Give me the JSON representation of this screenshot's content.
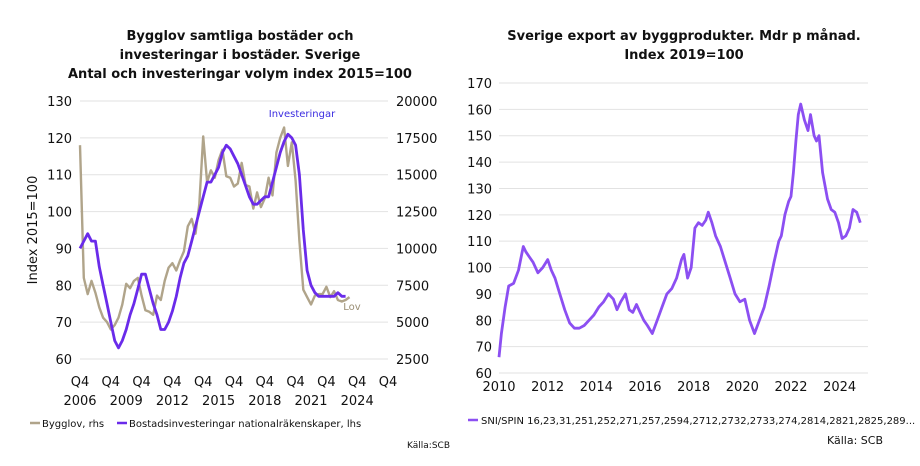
{
  "chart_data": [
    {
      "type": "line",
      "title_lines": [
        "Bygglov samtliga bostäder och",
        "investeringar i bostäder. Sverige",
        "Antal och investeringar volym index 2015=100"
      ],
      "ylabel": "Index 2015=100",
      "x_tick_quarters": [
        "Q4",
        "Q4",
        "Q4",
        "Q4",
        "Q4",
        "Q4",
        "Q4",
        "Q4",
        "Q4",
        "Q4",
        "Q4"
      ],
      "x_tick_years": [
        "2006",
        "2009",
        "2012",
        "2015",
        "2018",
        "2021",
        "2024"
      ],
      "y_left_ticks": [
        "60",
        "70",
        "80",
        "90",
        "100",
        "110",
        "120",
        "130"
      ],
      "y_right_ticks": [
        "2500",
        "5000",
        "7500",
        "10000",
        "12500",
        "15000",
        "17500",
        "20000"
      ],
      "ylim_left": [
        60,
        130
      ],
      "ylim_right": [
        2500,
        20000
      ],
      "xlim": [
        2006.75,
        2026.75
      ],
      "annotations": {
        "investeringar": "Investeringar",
        "lov": "Lov"
      },
      "series": [
        {
          "name": "Bygglov, rhs",
          "axis": "right",
          "color": "#b0a48a",
          "x": [
            2006.75,
            2007.0,
            2007.25,
            2007.5,
            2007.75,
            2008.0,
            2008.25,
            2008.5,
            2008.75,
            2009.0,
            2009.25,
            2009.5,
            2009.75,
            2010.0,
            2010.25,
            2010.5,
            2010.75,
            2011.0,
            2011.25,
            2011.5,
            2011.75,
            2012.0,
            2012.25,
            2012.5,
            2012.75,
            2013.0,
            2013.25,
            2013.5,
            2013.75,
            2014.0,
            2014.25,
            2014.5,
            2014.75,
            2015.0,
            2015.25,
            2015.5,
            2015.75,
            2016.0,
            2016.25,
            2016.5,
            2016.75,
            2017.0,
            2017.25,
            2017.5,
            2017.75,
            2018.0,
            2018.25,
            2018.5,
            2018.75,
            2019.0,
            2019.25,
            2019.5,
            2019.75,
            2020.0,
            2020.25,
            2020.5,
            2020.75,
            2021.0,
            2021.25,
            2021.5,
            2021.75,
            2022.0,
            2022.25,
            2022.5,
            2022.75,
            2023.0,
            2023.25,
            2023.5,
            2023.75,
            2024.0,
            2024.25
          ],
          "values": [
            17000,
            8000,
            6900,
            7800,
            7000,
            6000,
            5300,
            5000,
            4500,
            4800,
            5300,
            6200,
            7600,
            7300,
            7800,
            8000,
            6800,
            5800,
            5700,
            5500,
            6800,
            6500,
            7800,
            8700,
            9000,
            8500,
            9200,
            9800,
            11500,
            12000,
            11000,
            13000,
            17600,
            14500,
            15300,
            14800,
            16000,
            16700,
            14900,
            14800,
            14200,
            14400,
            15800,
            14300,
            14200,
            12700,
            13800,
            12800,
            13400,
            14800,
            13600,
            16500,
            17500,
            18200,
            15600,
            17200,
            14600,
            10500,
            7200,
            6700,
            6200,
            6800,
            6900,
            6900,
            7400,
            6700,
            7100,
            6500,
            6400,
            6500,
            6700
          ]
        },
        {
          "name": "Bostadsinvesteringar nationalräkenskaper, lhs",
          "axis": "left",
          "color": "#6a2bea",
          "x": [
            2006.75,
            2007.0,
            2007.25,
            2007.5,
            2007.75,
            2008.0,
            2008.25,
            2008.5,
            2008.75,
            2009.0,
            2009.25,
            2009.5,
            2009.75,
            2010.0,
            2010.25,
            2010.5,
            2010.75,
            2011.0,
            2011.25,
            2011.5,
            2011.75,
            2012.0,
            2012.25,
            2012.5,
            2012.75,
            2013.0,
            2013.25,
            2013.5,
            2013.75,
            2014.0,
            2014.25,
            2014.5,
            2014.75,
            2015.0,
            2015.25,
            2015.5,
            2015.75,
            2016.0,
            2016.25,
            2016.5,
            2016.75,
            2017.0,
            2017.25,
            2017.5,
            2017.75,
            2018.0,
            2018.25,
            2018.5,
            2018.75,
            2019.0,
            2019.25,
            2019.5,
            2019.75,
            2020.0,
            2020.25,
            2020.5,
            2020.75,
            2021.0,
            2021.25,
            2021.5,
            2021.75,
            2022.0,
            2022.25,
            2022.5,
            2022.75,
            2023.0,
            2023.25,
            2023.5,
            2023.75,
            2024.0
          ],
          "values": [
            90,
            92,
            94,
            92,
            92,
            85,
            80,
            75,
            70,
            65,
            63,
            65,
            68,
            72,
            75,
            79,
            83,
            83,
            79,
            75,
            72,
            68,
            68,
            70,
            73,
            77,
            82,
            86,
            88,
            92,
            96,
            100,
            104,
            108,
            108,
            110,
            112,
            116,
            118,
            117,
            115,
            113,
            110,
            107,
            104,
            102,
            102,
            103,
            104,
            104,
            108,
            112,
            116,
            119,
            121,
            120,
            118,
            110,
            95,
            84,
            80,
            78,
            77,
            77,
            77,
            77,
            77,
            78,
            77,
            77
          ]
        }
      ]
    },
    {
      "type": "line",
      "title_lines": [
        "Sverige export av byggprodukter. Mdr p månad.",
        "Index 2019=100"
      ],
      "x_ticks": [
        "2010",
        "2012",
        "2014",
        "2016",
        "2018",
        "2020",
        "2022",
        "2024"
      ],
      "y_ticks": [
        "60",
        "70",
        "80",
        "90",
        "100",
        "110",
        "120",
        "130",
        "140",
        "150",
        "160",
        "170"
      ],
      "ylim": [
        60,
        170
      ],
      "xlim": [
        2010.0,
        2025.0
      ],
      "series": [
        {
          "name": "SNI/SPIN 16,23,31,251,252,271,257,2594,2712,2732,2733,274,2814,2821,2825,289...",
          "color": "#8c4ff2",
          "x": [
            2010.0,
            2010.1,
            2010.25,
            2010.4,
            2010.6,
            2010.8,
            2011.0,
            2011.1,
            2011.25,
            2011.4,
            2011.6,
            2011.8,
            2012.0,
            2012.15,
            2012.3,
            2012.5,
            2012.7,
            2012.9,
            2013.1,
            2013.3,
            2013.5,
            2013.7,
            2013.9,
            2014.1,
            2014.3,
            2014.5,
            2014.7,
            2014.85,
            2015.0,
            2015.2,
            2015.35,
            2015.5,
            2015.65,
            2015.8,
            2015.95,
            2016.1,
            2016.3,
            2016.5,
            2016.7,
            2016.9,
            2017.1,
            2017.3,
            2017.5,
            2017.6,
            2017.75,
            2017.9,
            2018.05,
            2018.2,
            2018.35,
            2018.5,
            2018.6,
            2018.75,
            2018.9,
            2019.1,
            2019.3,
            2019.5,
            2019.7,
            2019.9,
            2020.1,
            2020.3,
            2020.5,
            2020.7,
            2020.9,
            2021.1,
            2021.3,
            2021.5,
            2021.6,
            2021.75,
            2021.9,
            2022.0,
            2022.1,
            2022.2,
            2022.3,
            2022.4,
            2022.55,
            2022.7,
            2022.8,
            2022.95,
            2023.05,
            2023.15,
            2023.3,
            2023.5,
            2023.65,
            2023.8,
            2023.95,
            2024.1,
            2024.25,
            2024.4,
            2024.55,
            2024.7,
            2024.85
          ],
          "values": [
            66,
            75,
            85,
            93,
            94,
            99,
            108,
            106,
            104,
            102,
            98,
            100,
            103,
            99,
            96,
            90,
            84,
            79,
            77,
            77,
            78,
            80,
            82,
            85,
            87,
            90,
            88,
            84,
            87,
            90,
            84,
            83,
            86,
            83,
            80,
            78,
            75,
            80,
            85,
            90,
            92,
            96,
            103,
            105,
            96,
            100,
            115,
            117,
            116,
            118,
            121,
            117,
            112,
            108,
            102,
            96,
            90,
            87,
            88,
            80,
            75,
            80,
            85,
            93,
            102,
            110,
            112,
            120,
            125,
            127,
            136,
            148,
            158,
            162,
            156,
            152,
            158,
            150,
            148,
            150,
            136,
            126,
            122,
            121,
            117,
            111,
            112,
            115,
            122,
            121,
            117
          ]
        }
      ]
    }
  ],
  "source_left": "Källa:SCB",
  "source_right": "Källa: SCB"
}
